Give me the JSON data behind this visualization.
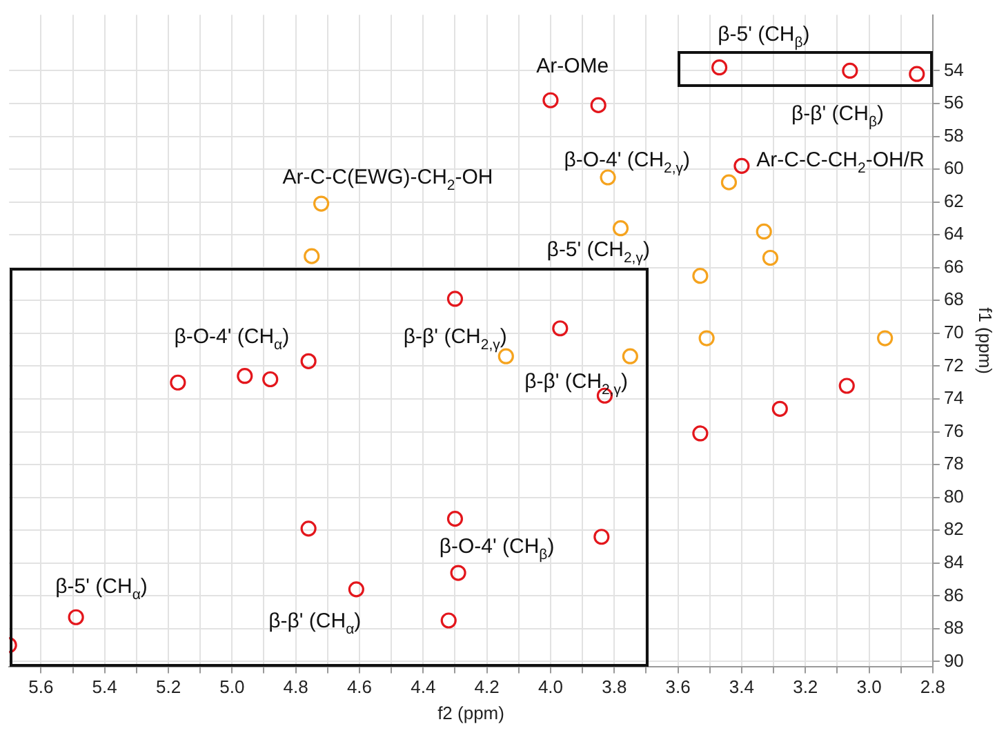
{
  "chart_data": {
    "type": "scatter",
    "xlabel": "f2 (ppm)",
    "ylabel": "f1 (ppm)",
    "xlim": [
      5.7,
      2.8
    ],
    "xticks": [
      5.6,
      {
        "value": 5.5,
        "label": null
      },
      5.4,
      {
        "value": 5.3,
        "label": null
      },
      5.2,
      {
        "value": 5.1,
        "label": null
      },
      {
        "value": 5.0,
        "label": "5.0"
      },
      {
        "value": 4.9,
        "label": null
      },
      4.8,
      {
        "value": 4.7,
        "label": null
      },
      4.6,
      {
        "value": 4.5,
        "label": null
      },
      4.4,
      {
        "value": 4.3,
        "label": null
      },
      4.2,
      {
        "value": 4.1,
        "label": null
      },
      {
        "value": 4.0,
        "label": "4.0"
      },
      {
        "value": 3.9,
        "label": null
      },
      3.8,
      {
        "value": 3.7,
        "label": null
      },
      3.6,
      {
        "value": 3.5,
        "label": null
      },
      3.4,
      {
        "value": 3.3,
        "label": null
      },
      3.2,
      {
        "value": 3.1,
        "label": null
      },
      {
        "value": 3.0,
        "label": "3.0"
      },
      {
        "value": 2.9,
        "label": null
      },
      2.8
    ],
    "ylim": [
      90.3,
      50.6
    ],
    "yticks": [
      54,
      56,
      58,
      60,
      62,
      64,
      66,
      68,
      70,
      72,
      74,
      76,
      78,
      80,
      82,
      84,
      86,
      88,
      90
    ],
    "grid": true,
    "marker": "circle",
    "legend": false,
    "series": [
      {
        "color": "#e3161c",
        "x": [
          3.85,
          4.0,
          3.47,
          3.06,
          2.85,
          3.4,
          4.3,
          3.97,
          4.76,
          5.17,
          4.96,
          4.88,
          3.83,
          3.53,
          3.28,
          3.07,
          4.76,
          4.3,
          3.84,
          4.29,
          4.61,
          5.49,
          4.32,
          5.7
        ],
        "values": [
          56.1,
          55.8,
          53.8,
          54.0,
          54.2,
          59.8,
          67.9,
          69.7,
          71.7,
          73.0,
          72.6,
          72.8,
          73.8,
          76.1,
          74.6,
          73.2,
          81.9,
          81.3,
          82.4,
          84.6,
          85.6,
          87.3,
          87.5,
          89.0
        ]
      },
      {
        "color": "#f5a31e",
        "x": [
          3.82,
          3.44,
          4.72,
          3.78,
          3.33,
          3.53,
          3.31,
          4.75,
          4.14,
          3.75,
          3.51,
          2.95
        ],
        "values": [
          60.5,
          60.8,
          62.1,
          63.6,
          63.8,
          66.5,
          65.4,
          65.3,
          71.4,
          71.4,
          70.3,
          70.3
        ]
      }
    ],
    "annotations": [
      "Ar-OMe",
      "β-5' (CH$_{β}$)",
      "β-β' (CH$_{β}$)",
      "β-O-4' (CH$_{2,γ}$)",
      "Ar-C-C-CH$_{2}$-OH/R",
      "Ar-C-C(EWG)-CH$_{2}$-OH",
      "β-5' (CH$_{2,γ}$)",
      "β-O-4' (CH$_{α}$)",
      "β-β' (CH$_{2,γ}$)",
      "β-β' (CH$_{2,γ}$)",
      "β-O-4' (CH$_{β}$)",
      "β-5' (CH$_{α}$)",
      "β-β' (CH$_{α}$)"
    ]
  }
}
